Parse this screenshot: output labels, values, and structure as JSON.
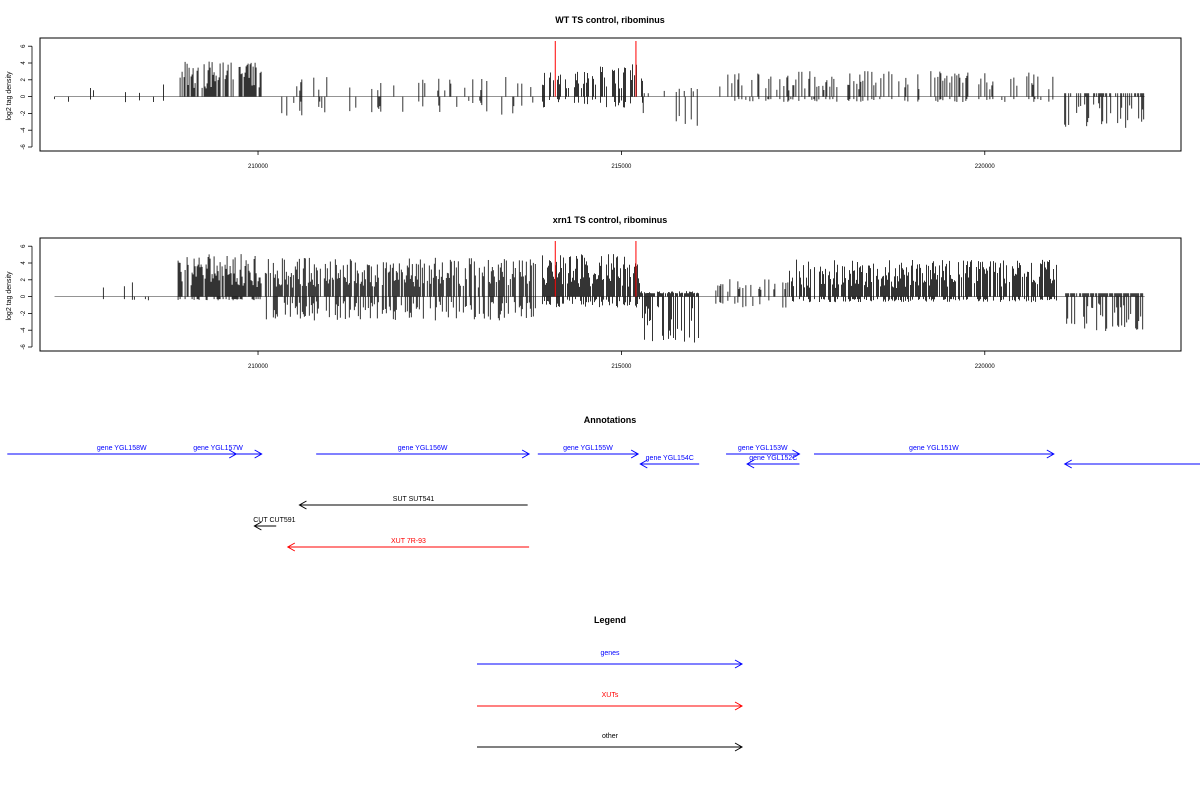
{
  "chart_data": [
    {
      "type": "bar",
      "title": "WT TS control, ribominus",
      "xlabel": "",
      "ylabel": "log2 tag density",
      "xlim": [
        207000,
        222700
      ],
      "ylim": [
        -6,
        6.5
      ],
      "xticks": [
        210000,
        215000,
        220000
      ],
      "yticks": [
        -6,
        -4,
        -2,
        0,
        2,
        4,
        6
      ],
      "grid": false,
      "markers": [
        {
          "x": 214090,
          "color": "#ff0000"
        },
        {
          "x": 215200,
          "color": "#ff0000"
        }
      ],
      "profile": [
        {
          "from": 207200,
          "to": 208800,
          "density": 0.08,
          "pos": 1.4,
          "neg": 0.6,
          "fill": 0.5
        },
        {
          "from": 208900,
          "to": 210050,
          "density": 0.7,
          "pos": 3.8,
          "neg": 0,
          "fill": 1.0
        },
        {
          "from": 210300,
          "to": 213850,
          "density": 0.28,
          "pos": 2.6,
          "neg": 2.4,
          "fill": 0.4
        },
        {
          "from": 213900,
          "to": 215300,
          "density": 0.6,
          "pos": 3.6,
          "neg": 1.2,
          "fill": 1.0
        },
        {
          "from": 215300,
          "to": 216100,
          "density": 0.15,
          "pos": 1.0,
          "neg": 3.2,
          "fill": 0.6
        },
        {
          "from": 216300,
          "to": 221000,
          "density": 0.35,
          "pos": 2.8,
          "neg": 0.6,
          "fill": 0.8
        },
        {
          "from": 221100,
          "to": 222200,
          "density": 0.55,
          "pos": 0.2,
          "neg": 3.4,
          "fill": 1.0
        }
      ]
    },
    {
      "type": "bar",
      "title": "xrn1 TS control, ribominus",
      "xlabel": "",
      "ylabel": "log2 tag density",
      "xlim": [
        207000,
        222700
      ],
      "ylim": [
        -6,
        6.5
      ],
      "xticks": [
        210000,
        215000,
        220000
      ],
      "yticks": [
        -6,
        -4,
        -2,
        0,
        2,
        4,
        6
      ],
      "grid": false,
      "markers": [
        {
          "x": 214090,
          "color": "#ff0000"
        },
        {
          "x": 215200,
          "color": "#ff0000"
        }
      ],
      "profile": [
        {
          "from": 207500,
          "to": 208800,
          "density": 0.1,
          "pos": 2.0,
          "neg": 0.4,
          "fill": 0.5
        },
        {
          "from": 208900,
          "to": 210050,
          "density": 0.9,
          "pos": 4.6,
          "neg": 0.4,
          "fill": 1.0
        },
        {
          "from": 210100,
          "to": 213850,
          "density": 0.75,
          "pos": 4.2,
          "neg": 2.6,
          "fill": 1.0
        },
        {
          "from": 213900,
          "to": 215250,
          "density": 0.85,
          "pos": 4.6,
          "neg": 1.2,
          "fill": 1.0
        },
        {
          "from": 215250,
          "to": 216100,
          "density": 0.8,
          "pos": 0.6,
          "neg": 5.0,
          "fill": 1.0
        },
        {
          "from": 216300,
          "to": 217300,
          "density": 0.4,
          "pos": 2.0,
          "neg": 1.2,
          "fill": 0.8
        },
        {
          "from": 217300,
          "to": 221000,
          "density": 0.75,
          "pos": 4.0,
          "neg": 0.6,
          "fill": 1.0
        },
        {
          "from": 221100,
          "to": 222200,
          "density": 0.8,
          "pos": 0.2,
          "neg": 4.0,
          "fill": 1.0
        }
      ]
    }
  ],
  "annotations": {
    "title": "Annotations",
    "genes": [
      {
        "label": "gene YGL158W",
        "start": 206550,
        "end": 209700,
        "dir": "right",
        "row": 0
      },
      {
        "label": "gene YGL157W",
        "start": 208850,
        "end": 210050,
        "dir": "right",
        "row": 0
      },
      {
        "label": "gene YGL156W",
        "start": 210800,
        "end": 213730,
        "dir": "right",
        "row": 0
      },
      {
        "label": "gene YGL155W",
        "start": 213850,
        "end": 215230,
        "dir": "right",
        "row": 0
      },
      {
        "label": "gene YGL154C",
        "start": 215260,
        "end": 216070,
        "dir": "left",
        "row": 1
      },
      {
        "label": "gene YGL153W",
        "start": 216440,
        "end": 217450,
        "dir": "right",
        "row": 0
      },
      {
        "label": "gene YGL152C",
        "start": 216730,
        "end": 217450,
        "dir": "left",
        "row": 1
      },
      {
        "label": "gene YGL151W",
        "start": 217650,
        "end": 220950,
        "dir": "right",
        "row": 0
      },
      {
        "label": "",
        "start": 221100,
        "end": 224300,
        "dir": "left",
        "row": 1
      }
    ],
    "other": [
      {
        "label": "SUT SUT541",
        "start": 210570,
        "end": 213710,
        "dir": "left"
      },
      {
        "label": "CUT CUT591",
        "start": 209950,
        "end": 210250,
        "dir": "left"
      }
    ],
    "xuts": [
      {
        "label": "XUT 7R-93",
        "start": 210410,
        "end": 213730,
        "dir": "left"
      }
    ]
  },
  "legend": {
    "title": "Legend",
    "items": [
      {
        "label": "genes",
        "color": "#0000ff"
      },
      {
        "label": "XUTs",
        "color": "#ff0000"
      },
      {
        "label": "other",
        "color": "#000000"
      }
    ]
  },
  "colors": {
    "gene": "#0000ff",
    "xut": "#ff0000",
    "other": "#000000",
    "bar": "#000000",
    "marker": "#ff0000"
  }
}
